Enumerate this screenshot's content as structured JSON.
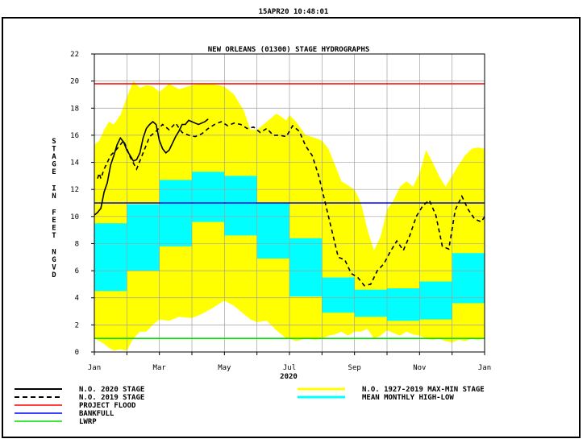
{
  "timestamp": "15APR20   10:48:01",
  "chart_data": {
    "type": "line",
    "title": "NEW ORLEANS (01300) STAGE HYDROGRAPHS",
    "ylabel": "STAGE IN FEET NGVD",
    "xlabel": "2020",
    "ylim": [
      0,
      22
    ],
    "yticks": [
      0,
      2,
      4,
      6,
      8,
      10,
      12,
      14,
      16,
      18,
      20,
      22
    ],
    "xlim": [
      0,
      12
    ],
    "xtick_labels": [
      "Jan",
      "Mar",
      "May",
      "Jul",
      "Sep",
      "Nov",
      "Jan"
    ],
    "xtick_positions": [
      0,
      2,
      4,
      6,
      8,
      10,
      12
    ],
    "grid": true,
    "reference_lines": [
      {
        "name": "PROJECT FLOOD",
        "value": 19.8,
        "color": "#ff0000"
      },
      {
        "name": "BANKFULL",
        "value": 11.0,
        "color": "#0000ff"
      },
      {
        "name": "LWRP",
        "value": 1.0,
        "color": "#00dd00"
      }
    ],
    "max_min_band": {
      "name": "N.O. 1927-2019 MAX-MIN STAGE",
      "color": "#ffff00",
      "x": [
        0,
        0.15,
        0.3,
        0.45,
        0.6,
        0.8,
        1.0,
        1.2,
        1.4,
        1.6,
        1.8,
        2.0,
        2.3,
        2.6,
        3.0,
        3.3,
        3.6,
        4.0,
        4.3,
        4.6,
        4.8,
        5.0,
        5.3,
        5.6,
        5.9,
        6.0,
        6.2,
        6.5,
        6.8,
        7.0,
        7.2,
        7.4,
        7.6,
        7.8,
        8.0,
        8.2,
        8.4,
        8.6,
        8.8,
        9.0,
        9.2,
        9.4,
        9.6,
        9.8,
        10.0,
        10.2,
        10.4,
        10.6,
        10.8,
        11.0,
        11.2,
        11.4,
        11.6,
        11.8,
        12.0
      ],
      "max": [
        15.3,
        15.6,
        16.4,
        17.0,
        16.8,
        17.5,
        18.8,
        20.0,
        19.5,
        19.7,
        19.6,
        19.2,
        19.8,
        19.4,
        19.7,
        19.8,
        19.8,
        19.6,
        19.0,
        17.8,
        16.4,
        16.4,
        17.0,
        17.6,
        17.1,
        17.5,
        17.0,
        16.0,
        15.8,
        15.6,
        15.0,
        13.8,
        12.6,
        12.3,
        12.0,
        11.0,
        9.0,
        7.5,
        8.5,
        10.5,
        11.2,
        12.2,
        12.6,
        12.2,
        13.2,
        14.9,
        14.0,
        13.0,
        12.2,
        13.0,
        13.8,
        14.5,
        15.0,
        15.1,
        15.0
      ],
      "min": [
        1.0,
        0.8,
        0.6,
        0.3,
        0.1,
        0.2,
        0.1,
        1.0,
        1.5,
        1.5,
        2.0,
        2.4,
        2.3,
        2.6,
        2.5,
        2.8,
        3.2,
        3.8,
        3.4,
        2.8,
        2.4,
        2.2,
        2.3,
        1.6,
        1.0,
        1.0,
        0.8,
        1.0,
        0.9,
        1.0,
        1.2,
        1.3,
        1.5,
        1.2,
        1.5,
        1.5,
        1.7,
        1.0,
        1.2,
        1.6,
        1.4,
        1.2,
        1.5,
        1.3,
        1.2,
        1.0,
        0.9,
        1.0,
        0.8,
        0.7,
        0.9,
        0.8,
        1.0,
        0.9,
        1.0
      ]
    },
    "monthly_high_low": {
      "name": "MEAN MONTHLY HIGH-LOW",
      "color": "#00ffff",
      "months": [
        {
          "high": 9.5,
          "low": 4.5
        },
        {
          "high": 10.9,
          "low": 6.0
        },
        {
          "high": 12.7,
          "low": 7.8
        },
        {
          "high": 13.3,
          "low": 9.6
        },
        {
          "high": 13.0,
          "low": 8.6
        },
        {
          "high": 11.0,
          "low": 6.9
        },
        {
          "high": 8.4,
          "low": 4.1
        },
        {
          "high": 5.5,
          "low": 2.9
        },
        {
          "high": 4.6,
          "low": 2.6
        },
        {
          "high": 4.7,
          "low": 2.3
        },
        {
          "high": 5.2,
          "low": 2.4
        },
        {
          "high": 7.3,
          "low": 3.6
        }
      ]
    },
    "series": [
      {
        "name": "N.O. 2020 STAGE",
        "style": "solid",
        "color": "#000000",
        "x": [
          0,
          0.1,
          0.2,
          0.3,
          0.4,
          0.5,
          0.6,
          0.7,
          0.8,
          0.9,
          1.0,
          1.1,
          1.2,
          1.3,
          1.4,
          1.5,
          1.6,
          1.7,
          1.8,
          1.9,
          2.0,
          2.1,
          2.2,
          2.3,
          2.4,
          2.5,
          2.6,
          2.7,
          2.8,
          2.9,
          3.0,
          3.1,
          3.2,
          3.3,
          3.4,
          3.5
        ],
        "y": [
          10.1,
          10.3,
          10.6,
          11.8,
          12.5,
          13.8,
          14.5,
          15.3,
          15.8,
          15.5,
          14.9,
          14.5,
          14.1,
          14.2,
          14.7,
          15.8,
          16.5,
          16.8,
          17.0,
          16.8,
          15.6,
          15.0,
          14.7,
          14.9,
          15.4,
          15.9,
          16.3,
          16.8,
          16.8,
          17.1,
          17.0,
          16.9,
          16.8,
          16.9,
          17.0,
          17.2
        ]
      },
      {
        "name": "N.O. 2019 STAGE",
        "style": "dashed",
        "color": "#000000",
        "x": [
          0.1,
          0.15,
          0.2,
          0.3,
          0.5,
          0.7,
          0.9,
          1.1,
          1.3,
          1.5,
          1.7,
          1.9,
          2.1,
          2.3,
          2.5,
          2.7,
          2.9,
          3.1,
          3.3,
          3.5,
          3.7,
          3.9,
          4.1,
          4.3,
          4.5,
          4.7,
          4.9,
          5.1,
          5.3,
          5.5,
          5.7,
          5.9,
          6.1,
          6.3,
          6.5,
          6.7,
          6.9,
          7.1,
          7.3,
          7.5,
          7.7,
          7.9,
          8.1,
          8.3,
          8.5,
          8.7,
          8.9,
          9.1,
          9.3,
          9.5,
          9.7,
          9.9,
          10.1,
          10.3,
          10.5,
          10.7,
          10.9,
          11.1,
          11.3,
          11.5,
          11.7,
          11.9,
          12.0
        ],
        "y": [
          12.8,
          13.2,
          12.8,
          13.5,
          14.5,
          15.0,
          15.6,
          14.4,
          13.5,
          14.7,
          15.9,
          16.3,
          16.8,
          16.4,
          16.9,
          16.2,
          16.0,
          15.9,
          16.1,
          16.5,
          16.8,
          17.0,
          16.7,
          16.9,
          16.8,
          16.5,
          16.6,
          16.2,
          16.5,
          16.0,
          16.0,
          15.9,
          16.7,
          16.3,
          15.2,
          14.5,
          13.0,
          11.0,
          9.0,
          7.0,
          6.8,
          5.8,
          5.5,
          4.9,
          5.0,
          6.0,
          6.5,
          7.4,
          8.2,
          7.5,
          8.6,
          10.0,
          10.8,
          11.2,
          10.1,
          7.8,
          7.6,
          10.5,
          11.5,
          10.5,
          9.8,
          9.6,
          10.0
        ]
      }
    ],
    "legend": {
      "placement": "bottom",
      "entries": [
        "N.O. 2020 STAGE",
        "N.O. 2019 STAGE",
        "PROJECT FLOOD",
        "BANKFULL",
        "LWRP",
        "N.O. 1927-2019 MAX-MIN STAGE",
        "MEAN MONTHLY HIGH-LOW"
      ]
    }
  }
}
